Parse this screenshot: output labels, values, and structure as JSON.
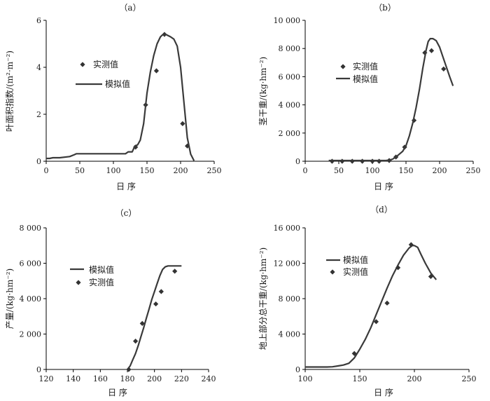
{
  "chart_data": [
    {
      "type": "line",
      "title": "（a）",
      "xlabel": "日 序",
      "ylabel": "叶面积指数/(m²·m⁻²)",
      "xlim": [
        0,
        250
      ],
      "ylim": [
        0,
        6
      ],
      "x_ticks": [
        0,
        50,
        100,
        150,
        200,
        250
      ],
      "y_ticks": [
        0,
        2,
        4,
        6
      ],
      "x_tick_labels": [
        "0",
        "50",
        "100",
        "150",
        "200",
        "250"
      ],
      "y_tick_labels": [
        "0",
        "2",
        "4",
        "6"
      ],
      "legend_position": "left",
      "series": [
        {
          "name": "实测值",
          "kind": "scatter",
          "marker": "diamond",
          "x": [
            133,
            148,
            164,
            176,
            203,
            210
          ],
          "y": [
            0.6,
            2.4,
            3.85,
            5.4,
            1.6,
            0.65
          ]
        },
        {
          "name": "模拟值",
          "kind": "line",
          "x": [
            0,
            5,
            10,
            20,
            35,
            42,
            45,
            50,
            80,
            100,
            118,
            122,
            128,
            132,
            136,
            140,
            145,
            150,
            155,
            160,
            165,
            170,
            173,
            178,
            185,
            190,
            195,
            200,
            205,
            210,
            215,
            220
          ],
          "y": [
            0.12,
            0.12,
            0.15,
            0.15,
            0.2,
            0.28,
            0.32,
            0.32,
            0.32,
            0.32,
            0.32,
            0.4,
            0.4,
            0.65,
            0.7,
            0.9,
            1.6,
            2.9,
            3.8,
            4.5,
            5.0,
            5.3,
            5.38,
            5.4,
            5.3,
            5.2,
            4.9,
            4.0,
            2.5,
            1.0,
            0.3,
            0.02
          ]
        }
      ]
    },
    {
      "type": "line",
      "title": "（b）",
      "xlabel": "日 序",
      "ylabel": "茎干重/(kg·hm⁻²)",
      "xlim": [
        0,
        250
      ],
      "ylim": [
        0,
        10000
      ],
      "x_ticks": [
        0,
        50,
        100,
        150,
        200,
        250
      ],
      "y_ticks": [
        0,
        2000,
        4000,
        6000,
        8000,
        10000
      ],
      "x_tick_labels": [
        "0",
        "50",
        "100",
        "150",
        "200",
        "250"
      ],
      "y_tick_labels": [
        "0",
        "2 000",
        "4 000",
        "6 000",
        "8 000",
        "10 000"
      ],
      "legend_position": "top-left",
      "series": [
        {
          "name": "实测值",
          "kind": "scatter",
          "marker": "diamond",
          "x": [
            40,
            55,
            70,
            85,
            100,
            110,
            125,
            135,
            148,
            162,
            178,
            188,
            206
          ],
          "y": [
            0,
            0,
            0,
            0,
            0,
            0,
            50,
            300,
            1000,
            2900,
            7700,
            7850,
            6550
          ]
        },
        {
          "name": "模拟值",
          "kind": "line",
          "x": [
            35,
            50,
            70,
            90,
            110,
            120,
            125,
            130,
            135,
            140,
            145,
            150,
            155,
            160,
            165,
            170,
            175,
            180,
            183,
            186,
            190,
            195,
            200,
            205,
            210,
            215,
            220
          ],
          "y": [
            50,
            50,
            50,
            50,
            50,
            50,
            80,
            150,
            300,
            500,
            700,
            1100,
            1800,
            2700,
            3800,
            5100,
            6600,
            7900,
            8500,
            8700,
            8700,
            8550,
            8100,
            7400,
            6700,
            6000,
            5350
          ]
        }
      ]
    },
    {
      "type": "line",
      "title": "（c）",
      "xlabel": "日 序",
      "ylabel": "产量/(kg·hm⁻²)",
      "xlim": [
        120,
        240
      ],
      "ylim": [
        0,
        8000
      ],
      "x_ticks": [
        120,
        140,
        160,
        180,
        200,
        220,
        240
      ],
      "y_ticks": [
        0,
        2000,
        4000,
        6000,
        8000
      ],
      "x_tick_labels": [
        "120",
        "140",
        "160",
        "180",
        "200",
        "220",
        "240"
      ],
      "y_tick_labels": [
        "0",
        "2 000",
        "4 000",
        "6 000",
        "8 000"
      ],
      "legend_position": "right",
      "series": [
        {
          "name": "模拟值",
          "kind": "line",
          "x": [
            180,
            182,
            184,
            186,
            188,
            190,
            192,
            194,
            196,
            198,
            200,
            202,
            204,
            206,
            208,
            210,
            215,
            220
          ],
          "y": [
            0,
            200,
            550,
            900,
            1350,
            1850,
            2350,
            2900,
            3400,
            3950,
            4400,
            4850,
            5300,
            5650,
            5800,
            5850,
            5850,
            5850
          ]
        },
        {
          "name": "实测值",
          "kind": "scatter",
          "marker": "diamond",
          "x": [
            181,
            186,
            191,
            201,
            205,
            215
          ],
          "y": [
            0,
            1600,
            2600,
            3700,
            4400,
            5550
          ]
        }
      ]
    },
    {
      "type": "line",
      "title": "（d）",
      "xlabel": "日 序",
      "ylabel": "地上部分总干重/(kg·hm⁻²)",
      "xlim": [
        100,
        250
      ],
      "ylim": [
        0,
        16000
      ],
      "x_ticks": [
        100,
        150,
        200,
        250
      ],
      "y_ticks": [
        0,
        4000,
        8000,
        12000,
        16000
      ],
      "x_tick_labels": [
        "100",
        "150",
        "200",
        "250"
      ],
      "y_tick_labels": [
        "0",
        "4 000",
        "8 000",
        "12 000",
        "16 000"
      ],
      "legend_position": "top-left",
      "series": [
        {
          "name": "模拟值",
          "kind": "line",
          "x": [
            100,
            110,
            120,
            125,
            130,
            135,
            140,
            145,
            150,
            155,
            160,
            165,
            170,
            175,
            180,
            185,
            190,
            195,
            198,
            200,
            203,
            206,
            210,
            215,
            220
          ],
          "y": [
            280,
            280,
            280,
            300,
            400,
            500,
            700,
            1300,
            2300,
            3400,
            4700,
            6200,
            7700,
            9200,
            10600,
            11800,
            12900,
            13700,
            14000,
            14000,
            13800,
            13000,
            12000,
            10900,
            10150
          ]
        },
        {
          "name": "实测值",
          "kind": "scatter",
          "marker": "diamond",
          "x": [
            145,
            165,
            175,
            185,
            197,
            215
          ],
          "y": [
            1800,
            5400,
            7500,
            11500,
            14100,
            10500
          ]
        }
      ]
    }
  ]
}
